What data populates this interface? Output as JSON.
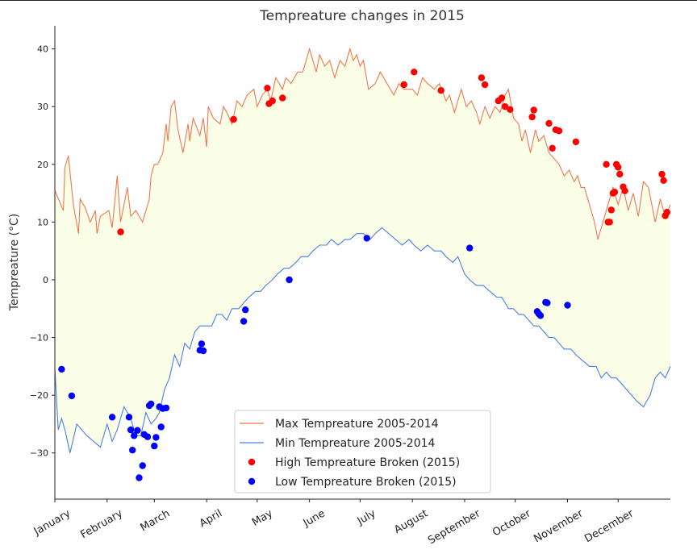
{
  "chart_data": {
    "type": "line",
    "title": "Tempreature changes in 2015",
    "xlabel": "",
    "ylabel": "Tempreature ($^\\circ$C)",
    "ylabel_display": "Tempreature (°C)",
    "xlim": [
      1,
      366
    ],
    "ylim": [
      -38,
      44
    ],
    "grid": false,
    "legend_position": "lower-center",
    "fill_between_color": "#fafee6",
    "x_ticks": [
      {
        "day": 1,
        "label": "January"
      },
      {
        "day": 32,
        "label": "February"
      },
      {
        "day": 60,
        "label": "March"
      },
      {
        "day": 91,
        "label": "April"
      },
      {
        "day": 121,
        "label": "May"
      },
      {
        "day": 152,
        "label": "June"
      },
      {
        "day": 182,
        "label": "July"
      },
      {
        "day": 213,
        "label": "August"
      },
      {
        "day": 244,
        "label": "September"
      },
      {
        "day": 274,
        "label": "October"
      },
      {
        "day": 305,
        "label": "November"
      },
      {
        "day": 335,
        "label": "December"
      }
    ],
    "y_ticks": [
      -30,
      -20,
      -10,
      0,
      10,
      20,
      30,
      40
    ],
    "series": [
      {
        "name": "Max Tempreature 2005-2014",
        "color": "#f07850",
        "x": [
          1,
          6,
          7,
          9,
          12,
          15,
          16,
          19,
          22,
          25,
          26,
          28,
          33,
          35,
          38,
          40,
          44,
          46,
          49,
          53,
          55,
          57,
          58,
          60,
          62,
          65,
          67,
          68,
          70,
          72,
          74,
          77,
          80,
          81,
          83,
          87,
          89,
          91,
          92,
          95,
          99,
          101,
          103,
          106,
          109,
          112,
          115,
          119,
          121,
          124,
          127,
          129,
          132,
          136,
          138,
          141,
          145,
          148,
          152,
          156,
          158,
          161,
          164,
          167,
          170,
          173,
          176,
          178,
          180,
          182,
          184,
          187,
          191,
          194,
          198,
          202,
          205,
          208,
          213,
          216,
          219,
          222,
          226,
          229,
          233,
          235,
          238,
          242,
          245,
          248,
          251,
          253,
          256,
          259,
          262,
          265,
          268,
          270,
          273,
          276,
          278,
          280,
          283,
          286,
          288,
          291,
          294,
          297,
          300,
          303,
          306,
          309,
          311,
          313,
          315,
          317,
          319,
          321,
          323,
          326,
          330,
          332,
          335,
          338,
          341,
          344,
          347,
          350,
          353,
          357,
          360,
          363,
          366
        ],
        "y": [
          15.5,
          12,
          19.5,
          21.5,
          13,
          8,
          14,
          12.5,
          10,
          12,
          8,
          11,
          12,
          9,
          18,
          10,
          16,
          11,
          12,
          10,
          12,
          14,
          18,
          20,
          20,
          22,
          27,
          24,
          30,
          31,
          26,
          22,
          27,
          24,
          28,
          25,
          28,
          23,
          30,
          28,
          27,
          30,
          29,
          27,
          31,
          30,
          32,
          33,
          30,
          32,
          33,
          31,
          35,
          33,
          35,
          34,
          36,
          36,
          40,
          36,
          39,
          37,
          38,
          35,
          38,
          37,
          40,
          38,
          39,
          37,
          38,
          33,
          34,
          36,
          34,
          32,
          34,
          33,
          33,
          32,
          35,
          34,
          33,
          34,
          31,
          32,
          29,
          33,
          30,
          31,
          29,
          27,
          30,
          28,
          30,
          29,
          32,
          33,
          28,
          27,
          24,
          26,
          22,
          26,
          24,
          25,
          22,
          21,
          20,
          18,
          19,
          17,
          18,
          16,
          16,
          14,
          12,
          10,
          7,
          10,
          14,
          16,
          13,
          16,
          12,
          15,
          11,
          17,
          16,
          10,
          14,
          11,
          13
        ]
      },
      {
        "name": "Min Tempreature 2005-2014",
        "color": "#4a80e0",
        "x": [
          1,
          3,
          5,
          7,
          10,
          14,
          17,
          20,
          24,
          28,
          32,
          35,
          38,
          42,
          46,
          49,
          52,
          55,
          58,
          61,
          63,
          66,
          69,
          72,
          75,
          78,
          81,
          84,
          87,
          91,
          94,
          97,
          100,
          103,
          106,
          110,
          113,
          116,
          120,
          123,
          126,
          130,
          133,
          137,
          140,
          144,
          147,
          151,
          154,
          158,
          162,
          165,
          169,
          173,
          176,
          180,
          184,
          188,
          191,
          195,
          199,
          203,
          207,
          211,
          214,
          218,
          222,
          226,
          230,
          233,
          237,
          240,
          244,
          247,
          251,
          255,
          259,
          263,
          266,
          270,
          273,
          276,
          279,
          282,
          285,
          288,
          291,
          294,
          297,
          300,
          303,
          307,
          310,
          314,
          318,
          322,
          325,
          328,
          331,
          334,
          337,
          340,
          343,
          346,
          350,
          354,
          357,
          360,
          363,
          366
        ],
        "y": [
          -15.5,
          -26,
          -24,
          -26,
          -30,
          -25,
          -26,
          -27,
          -28,
          -29,
          -25,
          -28,
          -26,
          -22,
          -24,
          -27,
          -27,
          -23,
          -25,
          -24,
          -23,
          -19,
          -17,
          -13,
          -15,
          -11,
          -12,
          -9,
          -8,
          -8,
          -8,
          -6,
          -6,
          -7,
          -5,
          -5,
          -4,
          -3,
          -2,
          -2,
          -1,
          0,
          1,
          2,
          2,
          3,
          4,
          4,
          5,
          6,
          6,
          7,
          6,
          7,
          7,
          8,
          8,
          7,
          8,
          9,
          8,
          7,
          6,
          7,
          6,
          5,
          6,
          5,
          5,
          4,
          3,
          4,
          1,
          0,
          -1,
          -1,
          -2,
          -3,
          -3,
          -5,
          -5,
          -6,
          -6,
          -7,
          -8,
          -8,
          -9,
          -10,
          -10,
          -11,
          -12,
          -12,
          -13,
          -14,
          -15,
          -15,
          -17,
          -16,
          -17,
          -17,
          -18,
          -19,
          -20,
          -21,
          -22,
          -20,
          -17,
          -16,
          -17,
          -15
        ]
      },
      {
        "name": "High Tempreature Broken (2015)",
        "color": "#ff0000",
        "type": "scatter",
        "x": [
          40,
          107,
          127,
          128,
          130,
          136,
          208,
          214,
          230,
          254,
          256,
          264,
          266,
          268,
          271,
          284,
          285,
          294,
          296,
          298,
          300,
          310,
          328,
          329,
          330,
          331,
          332,
          333,
          334,
          335,
          336,
          338,
          339,
          361,
          362,
          363,
          364
        ],
        "y": [
          8.3,
          27.8,
          33.2,
          30.5,
          31.0,
          31.5,
          33.8,
          36.0,
          32.8,
          35.0,
          33.8,
          31.0,
          31.5,
          30.0,
          29.5,
          28.2,
          29.4,
          27.1,
          22.8,
          26.0,
          25.8,
          23.9,
          20.0,
          10.0,
          10.0,
          12.1,
          15.0,
          15.2,
          20.0,
          19.5,
          18.3,
          16.1,
          15.4,
          18.3,
          17.2,
          11.1,
          11.7
        ]
      },
      {
        "name": "Low Tempreature Broken (2015)",
        "color": "#0000ff",
        "type": "scatter",
        "x": [
          5,
          11,
          35,
          45,
          46,
          47,
          48,
          50,
          51,
          53,
          54,
          56,
          57,
          58,
          60,
          61,
          63,
          64,
          65,
          67,
          87,
          88,
          89,
          113,
          114,
          140,
          186,
          247,
          287,
          288,
          289,
          292,
          293,
          305
        ],
        "y": [
          -15.5,
          -20.1,
          -23.8,
          -23.8,
          -26.0,
          -29.5,
          -27.0,
          -26.1,
          -34.3,
          -32.2,
          -26.8,
          -27.2,
          -21.8,
          -21.5,
          -28.8,
          -27.3,
          -22.0,
          -25.5,
          -22.3,
          -22.2,
          -12.2,
          -11.1,
          -12.3,
          -7.2,
          -5.2,
          0.0,
          7.2,
          5.5,
          -5.5,
          -5.9,
          -6.2,
          -3.9,
          -4.0,
          -4.4
        ]
      }
    ]
  }
}
